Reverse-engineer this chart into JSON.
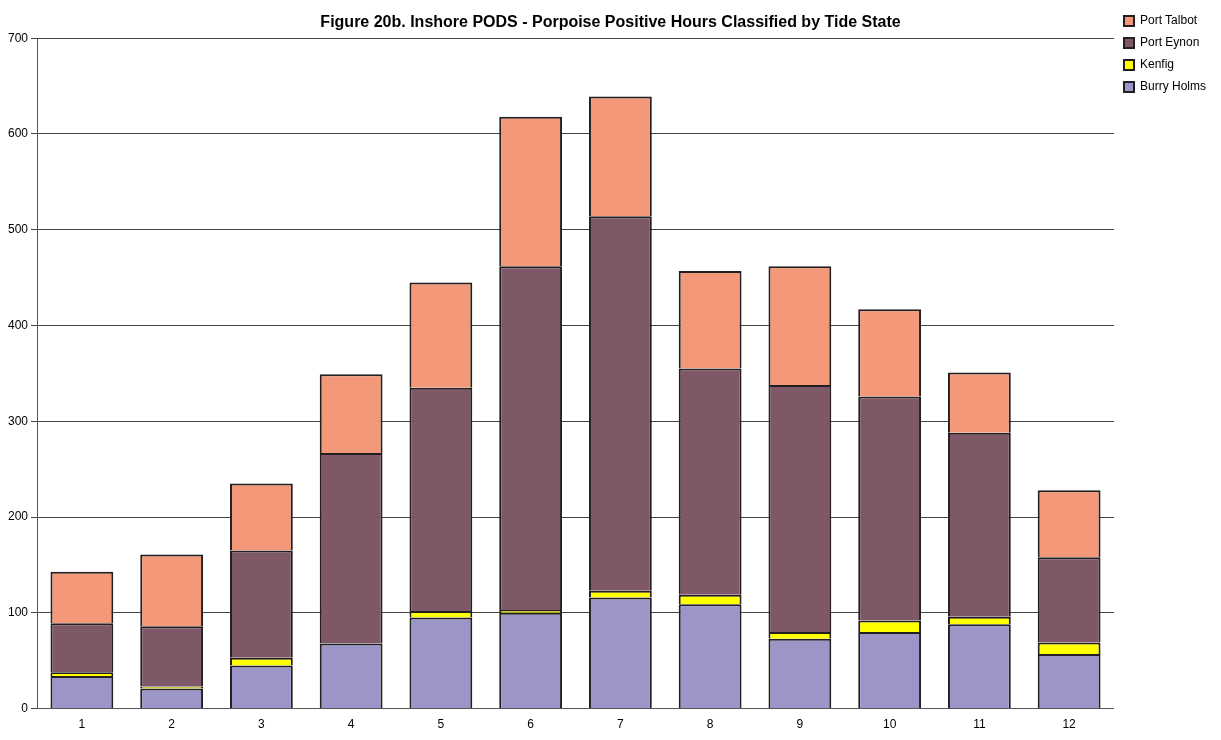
{
  "chart_data": {
    "type": "bar",
    "title": "Figure 20b. Inshore PODS - Porpoise Positive Hours Classified by Tide State",
    "categories": [
      "1",
      "2",
      "3",
      "4",
      "5",
      "6",
      "7",
      "8",
      "9",
      "10",
      "11",
      "12"
    ],
    "stacked": true,
    "series": [
      {
        "name": "Burry Holms",
        "color": "#9c96c8",
        "values": [
          34,
          21,
          45,
          68,
          95,
          100,
          116,
          109,
          73,
          80,
          88,
          57
        ]
      },
      {
        "name": "Kenfig",
        "color": "#ffff00",
        "values": [
          4,
          2,
          8,
          0,
          7,
          3,
          7,
          10,
          7,
          12,
          8,
          12
        ]
      },
      {
        "name": "Port Eynon",
        "color": "#7f5868",
        "values": [
          51,
          63,
          112,
          199,
          233,
          359,
          391,
          236,
          258,
          234,
          192,
          89
        ]
      },
      {
        "name": "Port Talbot",
        "color": "#f4987a",
        "values": [
          54,
          75,
          70,
          82,
          110,
          156,
          125,
          102,
          124,
          91,
          63,
          70
        ]
      }
    ],
    "ylim": [
      0,
      700
    ],
    "yticks": [
      0,
      100,
      200,
      300,
      400,
      500,
      600,
      700
    ],
    "grid": "y",
    "legend": "top right"
  }
}
